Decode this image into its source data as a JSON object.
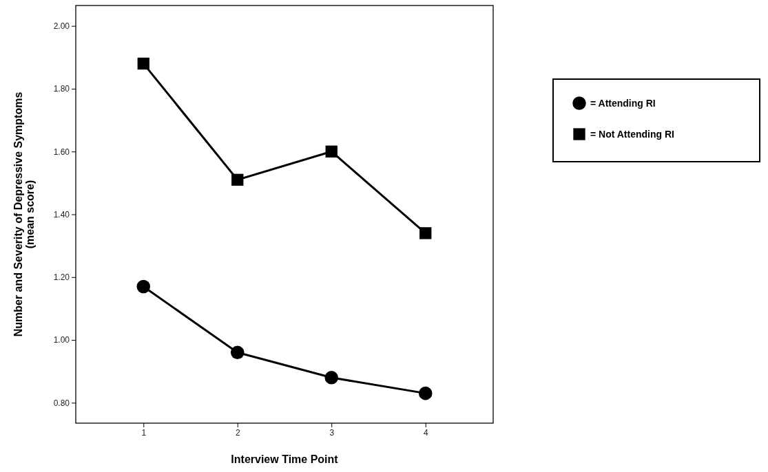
{
  "chart_data": {
    "type": "line",
    "xlabel": "Interview Time Point",
    "ylabel": "Number and Severity of Depressive Symptoms\n(mean score)",
    "x": [
      1,
      2,
      3,
      4
    ],
    "series": [
      {
        "name": "= Attending RI",
        "color": "#000000",
        "marker": "circle",
        "values": [
          1.17,
          0.96,
          0.88,
          0.83
        ]
      },
      {
        "name": "= Not Attending RI",
        "color": "#000000",
        "marker": "square",
        "values": [
          1.88,
          1.51,
          1.6,
          1.34
        ]
      }
    ],
    "xlim": [
      0.28,
      4.72
    ],
    "xticks": [
      1,
      2,
      3,
      4
    ],
    "ylim": [
      0.735,
      2.065
    ],
    "yticks": [
      {
        "value": 0.8,
        "label": "0.80"
      },
      {
        "value": 1.0,
        "label": "1.00"
      },
      {
        "value": 1.2,
        "label": "1.20"
      },
      {
        "value": 1.4,
        "label": "1.40"
      },
      {
        "value": 1.6,
        "label": "1.60"
      },
      {
        "value": 1.8,
        "label": "1.80"
      },
      {
        "value": 2.0,
        "label": "2.00"
      }
    ],
    "grid": false,
    "legend": "right",
    "line_style": "solid"
  }
}
